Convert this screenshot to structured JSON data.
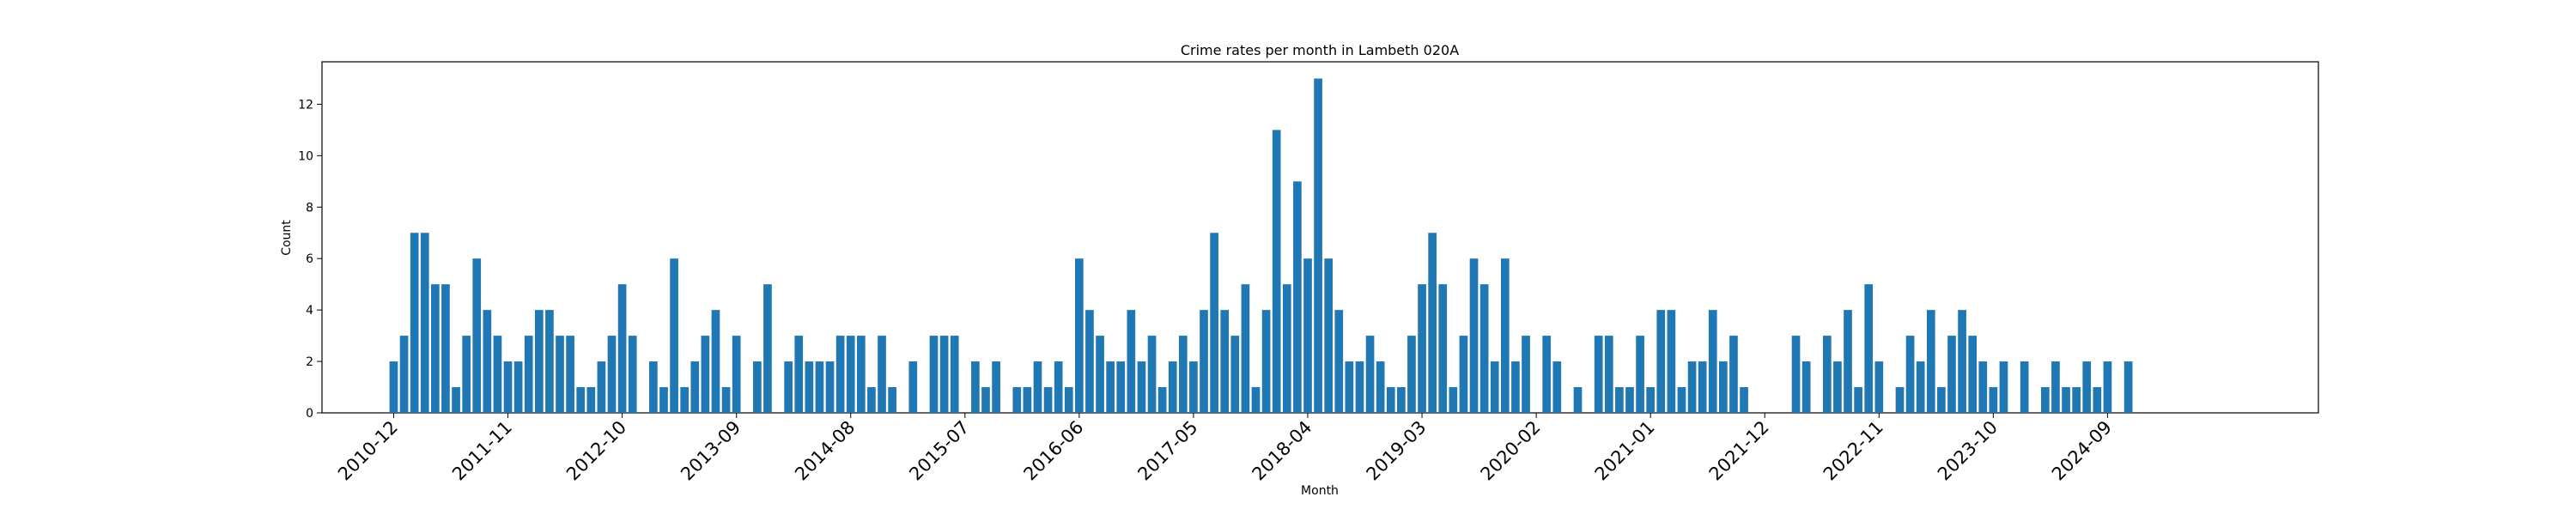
{
  "chart_data": {
    "type": "bar",
    "title": "Crime rates per month in Lambeth 020A",
    "xlabel": "Month",
    "ylabel": "Count",
    "ylim": [
      0,
      13.65
    ],
    "yticks": [
      0,
      2,
      4,
      6,
      8,
      10,
      12
    ],
    "x_tick_labels": [
      "2010-12",
      "2011-11",
      "2012-10",
      "2013-09",
      "2014-08",
      "2015-07",
      "2016-06",
      "2017-05",
      "2018-04",
      "2019-03",
      "2020-02",
      "2021-01",
      "2021-12",
      "2022-11",
      "2023-10",
      "2024-09"
    ],
    "grid": false,
    "bar_color": "#1f77b4",
    "categories": [
      "2010-12",
      "2011-01",
      "2011-02",
      "2011-03",
      "2011-04",
      "2011-05",
      "2011-06",
      "2011-07",
      "2011-08",
      "2011-09",
      "2011-10",
      "2011-11",
      "2011-12",
      "2012-01",
      "2012-02",
      "2012-03",
      "2012-04",
      "2012-05",
      "2012-06",
      "2012-07",
      "2012-08",
      "2012-09",
      "2012-10",
      "2012-11",
      "2012-12",
      "2013-01",
      "2013-02",
      "2013-03",
      "2013-04",
      "2013-05",
      "2013-06",
      "2013-07",
      "2013-08",
      "2013-09",
      "2013-10",
      "2013-11",
      "2013-12",
      "2014-01",
      "2014-02",
      "2014-03",
      "2014-04",
      "2014-05",
      "2014-06",
      "2014-07",
      "2014-08",
      "2014-09",
      "2014-10",
      "2014-11",
      "2014-12",
      "2015-01",
      "2015-02",
      "2015-03",
      "2015-04",
      "2015-05",
      "2015-06",
      "2015-07",
      "2015-08",
      "2015-09",
      "2015-10",
      "2015-11",
      "2015-12",
      "2016-01",
      "2016-02",
      "2016-03",
      "2016-04",
      "2016-05",
      "2016-06",
      "2016-07",
      "2016-08",
      "2016-09",
      "2016-10",
      "2016-11",
      "2016-12",
      "2017-01",
      "2017-02",
      "2017-03",
      "2017-04",
      "2017-05",
      "2017-06",
      "2017-07",
      "2017-08",
      "2017-09",
      "2017-10",
      "2017-11",
      "2017-12",
      "2018-01",
      "2018-02",
      "2018-03",
      "2018-04",
      "2018-05",
      "2018-06",
      "2018-07",
      "2018-08",
      "2018-09",
      "2018-10",
      "2018-11",
      "2018-12",
      "2019-01",
      "2019-02",
      "2019-03",
      "2019-04",
      "2019-05",
      "2019-06",
      "2019-07",
      "2019-08",
      "2019-09",
      "2019-10",
      "2019-11",
      "2019-12",
      "2020-01",
      "2020-02",
      "2020-03",
      "2020-04",
      "2020-05",
      "2020-06",
      "2020-07",
      "2020-08",
      "2020-09",
      "2020-10",
      "2020-11",
      "2020-12",
      "2021-01",
      "2021-02",
      "2021-03",
      "2021-04",
      "2021-05",
      "2021-06",
      "2021-07",
      "2021-08",
      "2021-09",
      "2021-10",
      "2021-11",
      "2021-12",
      "2022-01",
      "2022-02",
      "2022-03",
      "2022-04",
      "2022-05",
      "2022-06",
      "2022-07",
      "2022-08",
      "2022-09",
      "2022-10",
      "2022-11",
      "2022-12",
      "2023-01",
      "2023-02",
      "2023-03",
      "2023-04",
      "2023-05",
      "2023-06",
      "2023-07",
      "2023-08",
      "2023-09",
      "2023-10",
      "2023-11",
      "2023-12",
      "2024-01",
      "2024-02",
      "2024-03",
      "2024-04",
      "2024-05",
      "2024-06",
      "2024-07",
      "2024-08",
      "2024-09",
      "2024-10",
      "2024-11"
    ],
    "values": [
      2,
      3,
      7,
      7,
      5,
      5,
      1,
      3,
      6,
      4,
      3,
      2,
      2,
      3,
      4,
      4,
      3,
      3,
      1,
      1,
      2,
      3,
      5,
      3,
      0,
      2,
      1,
      6,
      1,
      2,
      3,
      4,
      1,
      3,
      0,
      2,
      5,
      0,
      2,
      3,
      2,
      2,
      2,
      3,
      3,
      3,
      1,
      3,
      1,
      0,
      2,
      0,
      3,
      3,
      3,
      0,
      2,
      1,
      2,
      0,
      1,
      1,
      2,
      1,
      2,
      1,
      6,
      4,
      3,
      2,
      2,
      4,
      2,
      3,
      1,
      2,
      3,
      2,
      4,
      7,
      4,
      3,
      5,
      1,
      4,
      11,
      5,
      9,
      6,
      13,
      6,
      4,
      2,
      2,
      3,
      2,
      1,
      1,
      3,
      5,
      7,
      5,
      1,
      3,
      6,
      5,
      2,
      6,
      2,
      3,
      0,
      3,
      2,
      0,
      1,
      0,
      3,
      3,
      1,
      1,
      3,
      1,
      4,
      4,
      1,
      2,
      2,
      4,
      2,
      3,
      1,
      0,
      0,
      0,
      0,
      3,
      2,
      0,
      3,
      2,
      4,
      1,
      5,
      2,
      0,
      1,
      3,
      2,
      4,
      1,
      3,
      4,
      3,
      2,
      1,
      2,
      0,
      2,
      0,
      1,
      2,
      1,
      1,
      2,
      1,
      2,
      0,
      2
    ]
  }
}
